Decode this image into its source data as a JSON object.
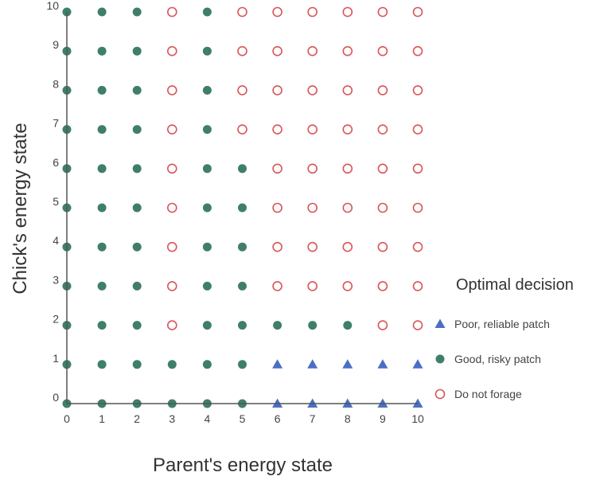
{
  "chart_data": {
    "type": "scatter",
    "xlabel": "Parent's energy state",
    "ylabel": "Chick's energy state",
    "xlim": [
      0,
      10
    ],
    "ylim": [
      0,
      10
    ],
    "x_ticks": [
      0,
      1,
      2,
      3,
      4,
      5,
      6,
      7,
      8,
      9,
      10
    ],
    "y_ticks": [
      0,
      1,
      2,
      3,
      4,
      5,
      6,
      7,
      8,
      9,
      10
    ],
    "grid": false,
    "legend": {
      "title": "Optimal decision",
      "placement": "right",
      "entries": [
        {
          "key": "poor",
          "label": "Poor, reliable patch",
          "marker": "triangle",
          "color": "#4a6fc4"
        },
        {
          "key": "good",
          "label": "Good, risky patch",
          "marker": "filled-circle",
          "color": "#3f7f6a"
        },
        {
          "key": "none",
          "label": "Do not forage",
          "marker": "open-circle",
          "color": "#d9555a"
        }
      ]
    },
    "grid_rows": [
      {
        "y": 10,
        "decisions": [
          "good",
          "good",
          "good",
          "none",
          "good",
          "none",
          "none",
          "none",
          "none",
          "none",
          "none"
        ]
      },
      {
        "y": 9,
        "decisions": [
          "good",
          "good",
          "good",
          "none",
          "good",
          "none",
          "none",
          "none",
          "none",
          "none",
          "none"
        ]
      },
      {
        "y": 8,
        "decisions": [
          "good",
          "good",
          "good",
          "none",
          "good",
          "none",
          "none",
          "none",
          "none",
          "none",
          "none"
        ]
      },
      {
        "y": 7,
        "decisions": [
          "good",
          "good",
          "good",
          "none",
          "good",
          "none",
          "none",
          "none",
          "none",
          "none",
          "none"
        ]
      },
      {
        "y": 6,
        "decisions": [
          "good",
          "good",
          "good",
          "none",
          "good",
          "good",
          "none",
          "none",
          "none",
          "none",
          "none"
        ]
      },
      {
        "y": 5,
        "decisions": [
          "good",
          "good",
          "good",
          "none",
          "good",
          "good",
          "none",
          "none",
          "none",
          "none",
          "none"
        ]
      },
      {
        "y": 4,
        "decisions": [
          "good",
          "good",
          "good",
          "none",
          "good",
          "good",
          "none",
          "none",
          "none",
          "none",
          "none"
        ]
      },
      {
        "y": 3,
        "decisions": [
          "good",
          "good",
          "good",
          "none",
          "good",
          "good",
          "none",
          "none",
          "none",
          "none",
          "none"
        ]
      },
      {
        "y": 2,
        "decisions": [
          "good",
          "good",
          "good",
          "none",
          "good",
          "good",
          "good",
          "good",
          "good",
          "none",
          "none"
        ]
      },
      {
        "y": 1,
        "decisions": [
          "good",
          "good",
          "good",
          "good",
          "good",
          "good",
          "poor",
          "poor",
          "poor",
          "poor",
          "poor"
        ]
      },
      {
        "y": 0,
        "decisions": [
          "good",
          "good",
          "good",
          "good",
          "good",
          "good",
          "poor",
          "poor",
          "poor",
          "poor",
          "poor"
        ]
      }
    ]
  }
}
